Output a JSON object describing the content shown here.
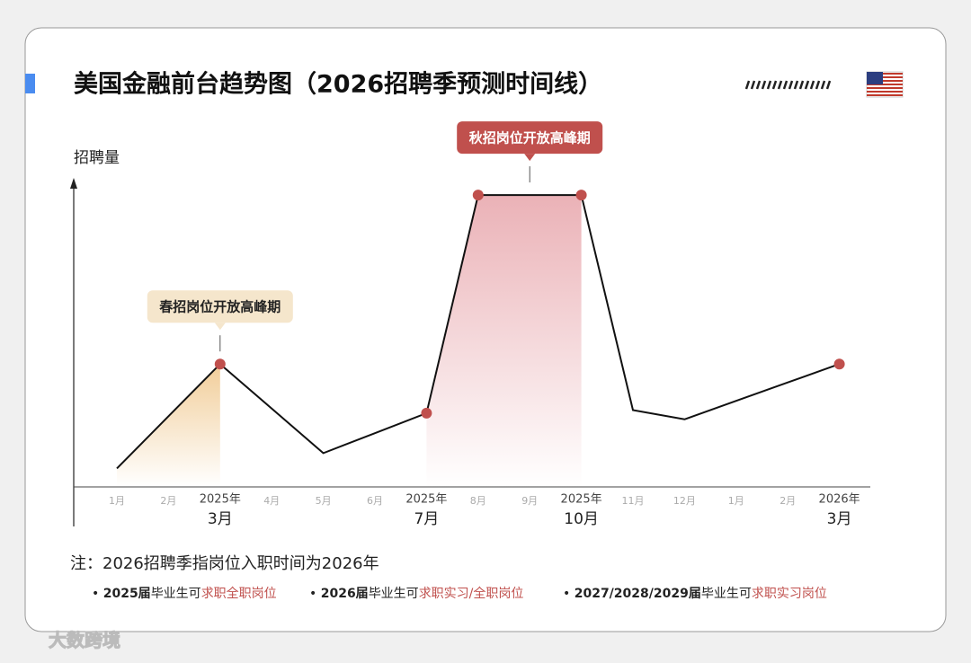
{
  "chart_data": {
    "type": "line",
    "title": "美国金融前台趋势图（2026招聘季预测时间线）",
    "y_label": "招聘量",
    "categories": [
      "1月",
      "2月",
      "3月",
      "4月",
      "5月",
      "6月",
      "7月",
      "8月",
      "9月",
      "10月",
      "11月",
      "12月",
      "1月",
      "2月",
      "3月"
    ],
    "year_labels": [
      {
        "index": 2,
        "year": "2025年"
      },
      {
        "index": 6,
        "year": "2025年"
      },
      {
        "index": 9,
        "year": "2025年"
      },
      {
        "index": 14,
        "year": "2026年"
      }
    ],
    "series": [
      {
        "name": "招聘量",
        "color": "#111111",
        "values": [
          6,
          23,
          40,
          25.5,
          11,
          17.5,
          24,
          95,
          95,
          95,
          25,
          22,
          28,
          34,
          40
        ]
      }
    ],
    "highlight_points": [
      2,
      6,
      7,
      9,
      14
    ],
    "point_color": "#c0504d",
    "annotations": [
      {
        "text": "春招岗位开放高峰期",
        "from": 0,
        "to": 2,
        "color": "#f0c88e"
      },
      {
        "text": "秋招岗位开放高峰期",
        "from": 6,
        "to": 9,
        "color": "#e7a4aa"
      }
    ],
    "ylim": [
      0,
      100
    ],
    "note": "注：2026招聘季指岗位入职时间为2026年",
    "bullets": [
      [
        "2025届",
        "毕业生可",
        "求职全职岗位"
      ],
      [
        "2026届",
        "毕业生可",
        "求职实习/全职岗位"
      ],
      [
        "2027/2028/2029届",
        "毕业生可",
        "求职实习岗位"
      ]
    ],
    "watermark": "大数跨境"
  }
}
